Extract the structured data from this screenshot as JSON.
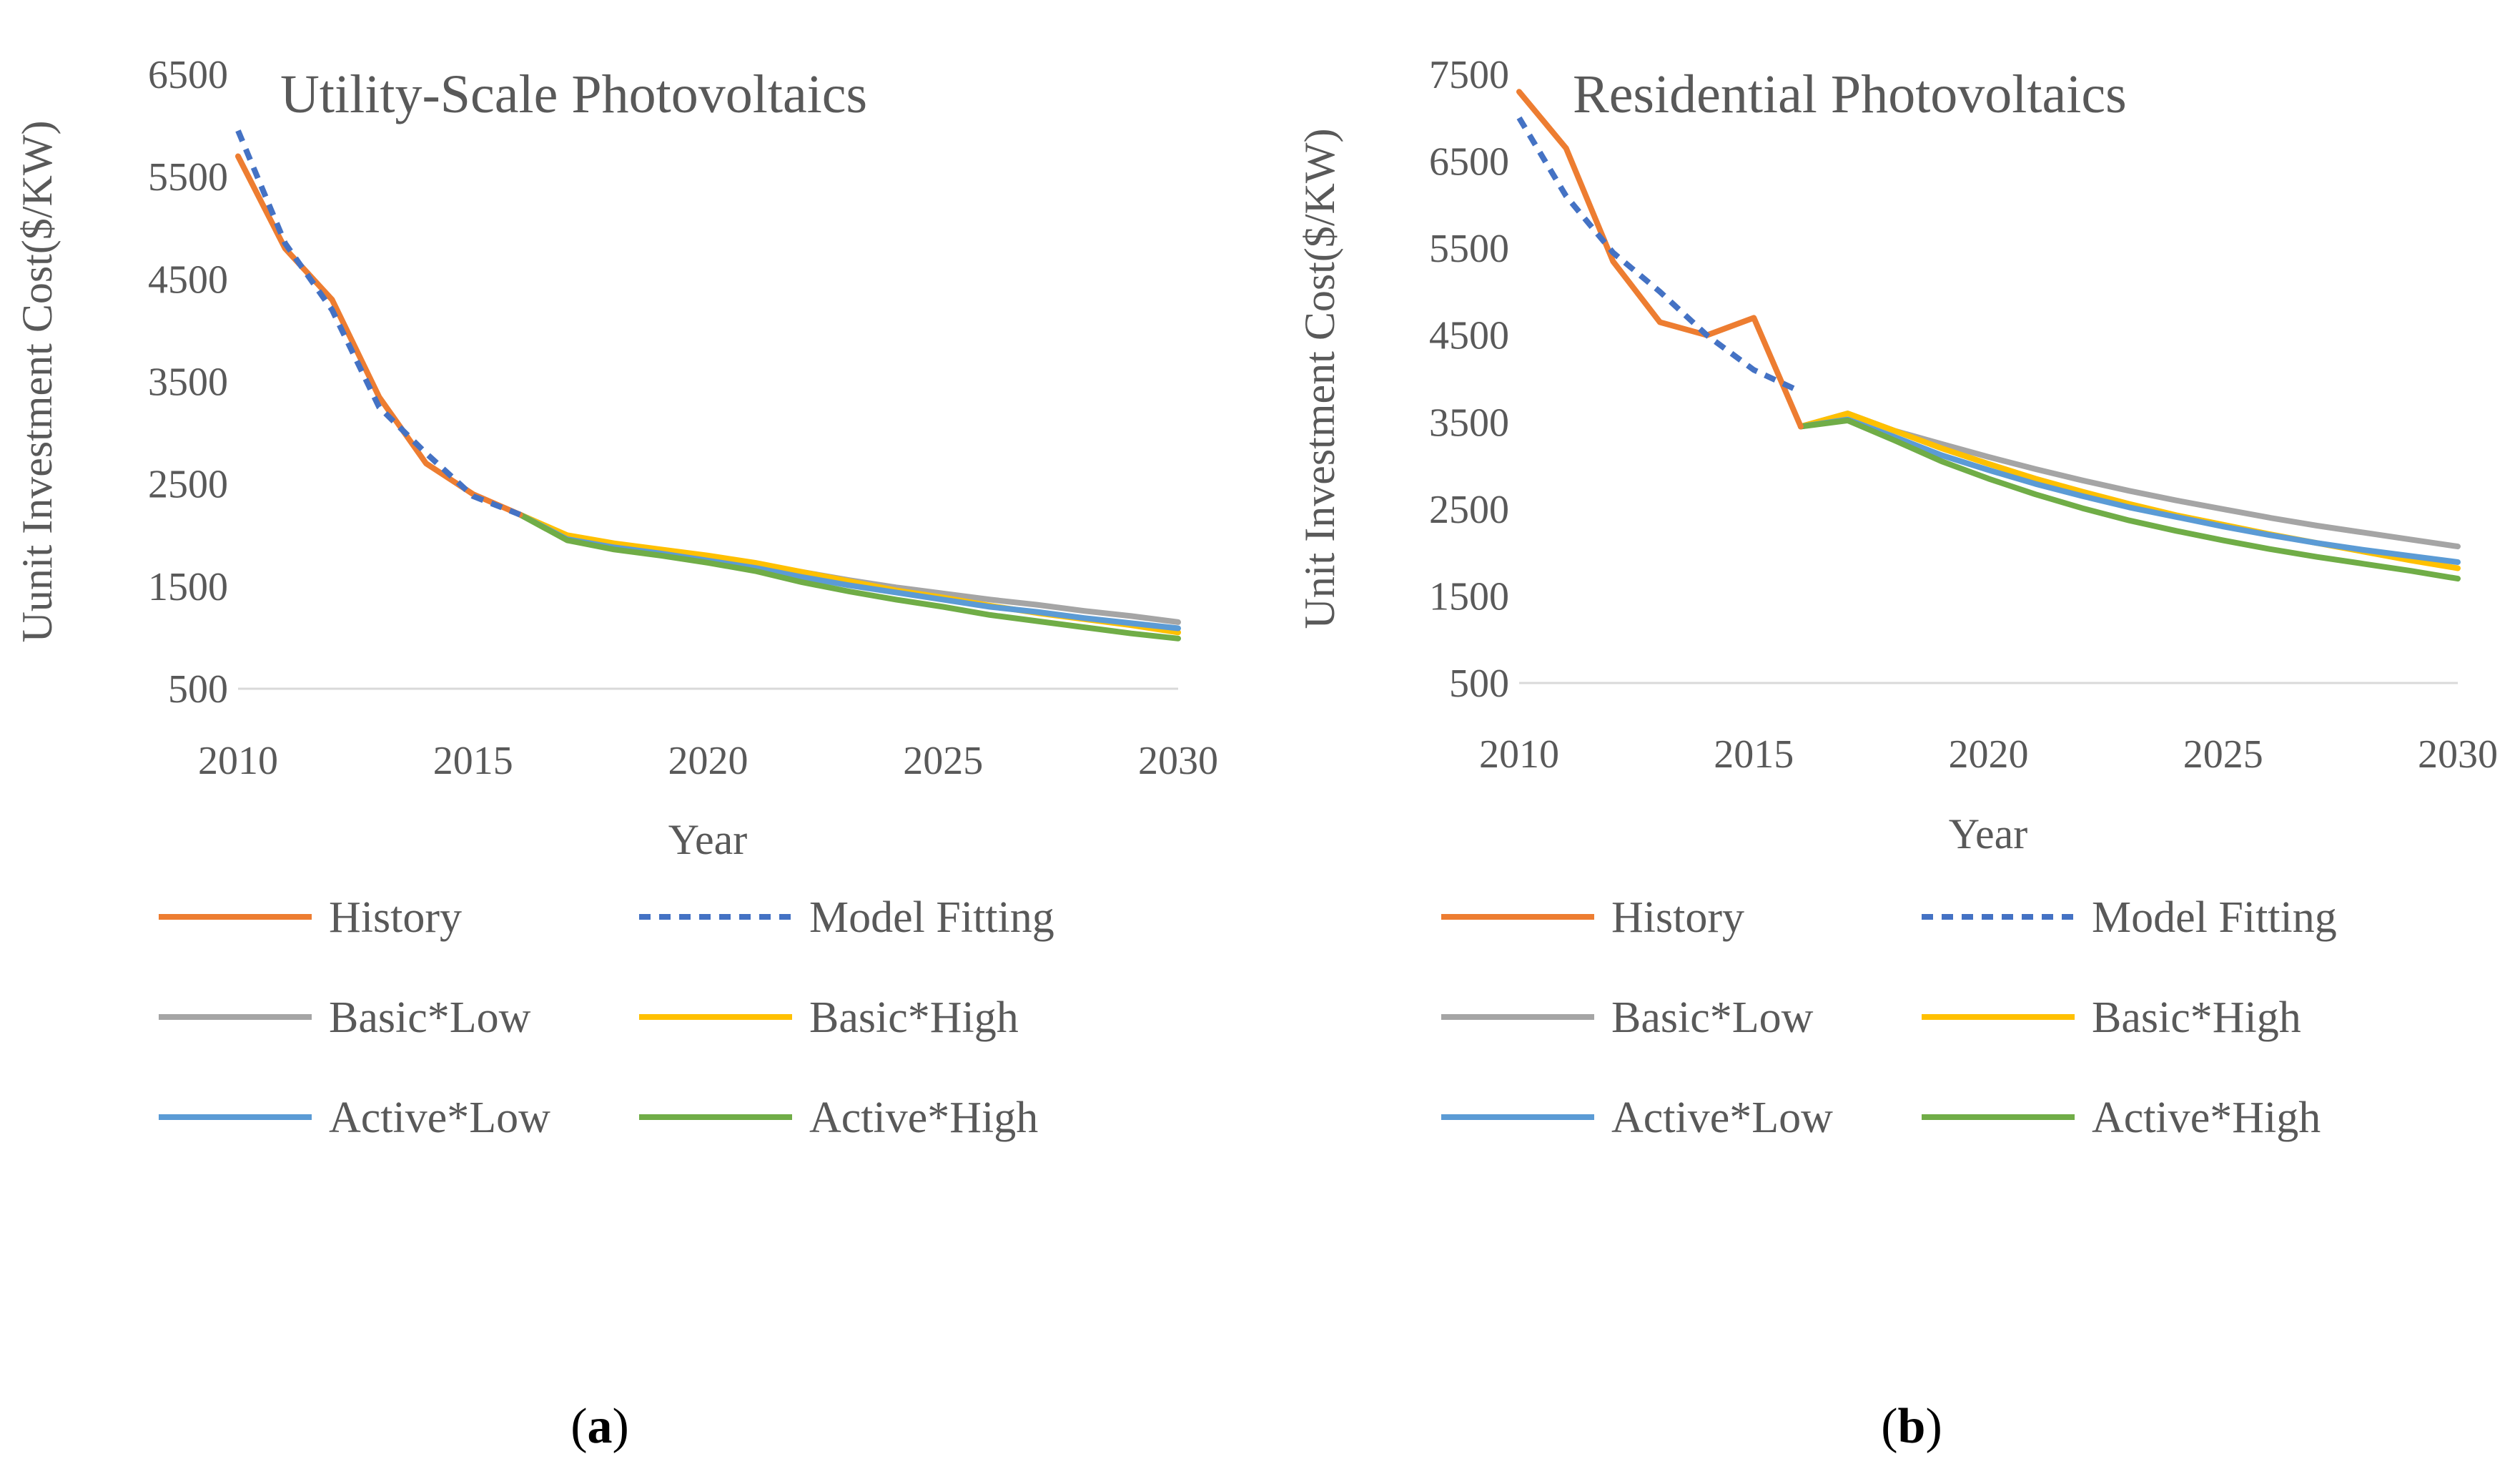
{
  "chart_data": [
    {
      "type": "line",
      "title": "Utility-Scale Photovoltaics",
      "xlabel": "Year",
      "ylabel": "Uunit Investment Cost($/KW)",
      "xlim": [
        2010,
        2030
      ],
      "ylim": [
        500,
        6500
      ],
      "xticks": [
        "2010",
        "2015",
        "2020",
        "2025",
        "2030"
      ],
      "yticks": [
        "500",
        "1500",
        "2500",
        "3500",
        "4500",
        "5500",
        "6500"
      ],
      "caption_letter": "a",
      "series": [
        {
          "name": "History",
          "color": "#ED7D31",
          "dash": false,
          "x": [
            2010,
            2011,
            2012,
            2013,
            2014,
            2015,
            2016
          ],
          "y": [
            5700,
            4800,
            4300,
            3350,
            2700,
            2400,
            2200
          ]
        },
        {
          "name": "Model Fitting",
          "color": "#4472C4",
          "dash": true,
          "x": [
            2010,
            2011,
            2012,
            2013,
            2014,
            2015,
            2016
          ],
          "y": [
            5950,
            4850,
            4200,
            3250,
            2800,
            2380,
            2200
          ]
        },
        {
          "name": "Basic*Low",
          "color": "#A5A5A5",
          "dash": false,
          "x": [
            2016,
            2017,
            2018,
            2019,
            2020,
            2021,
            2022,
            2023,
            2024,
            2025,
            2026,
            2027,
            2028,
            2029,
            2030
          ],
          "y": [
            2200,
            1990,
            1900,
            1840,
            1780,
            1720,
            1640,
            1560,
            1490,
            1430,
            1370,
            1320,
            1260,
            1210,
            1150
          ]
        },
        {
          "name": "Basic*High",
          "color": "#FFC000",
          "dash": false,
          "x": [
            2016,
            2017,
            2018,
            2019,
            2020,
            2021,
            2022,
            2023,
            2024,
            2025,
            2026,
            2027,
            2028,
            2029,
            2030
          ],
          "y": [
            2200,
            2000,
            1920,
            1860,
            1800,
            1730,
            1640,
            1550,
            1460,
            1390,
            1310,
            1240,
            1180,
            1120,
            1050
          ]
        },
        {
          "name": "Active*Low",
          "color": "#5B9BD5",
          "dash": false,
          "x": [
            2016,
            2017,
            2018,
            2019,
            2020,
            2021,
            2022,
            2023,
            2024,
            2025,
            2026,
            2027,
            2028,
            2029,
            2030
          ],
          "y": [
            2200,
            1960,
            1880,
            1820,
            1750,
            1680,
            1590,
            1510,
            1440,
            1370,
            1300,
            1250,
            1190,
            1140,
            1090
          ]
        },
        {
          "name": "Active*High",
          "color": "#70AD47",
          "dash": false,
          "x": [
            2016,
            2017,
            2018,
            2019,
            2020,
            2021,
            2022,
            2023,
            2024,
            2025,
            2026,
            2027,
            2028,
            2029,
            2030
          ],
          "y": [
            2200,
            1950,
            1860,
            1800,
            1730,
            1650,
            1540,
            1450,
            1370,
            1300,
            1220,
            1160,
            1100,
            1040,
            990
          ]
        }
      ]
    },
    {
      "type": "line",
      "title": "Residential Photovoltaics",
      "xlabel": "Year",
      "ylabel": "Unit Investment Cost($/KW)",
      "xlim": [
        2010,
        2030
      ],
      "ylim": [
        500,
        7500
      ],
      "xticks": [
        "2010",
        "2015",
        "2020",
        "2025",
        "2030"
      ],
      "yticks": [
        "500",
        "1500",
        "2500",
        "3500",
        "4500",
        "5500",
        "6500",
        "7500"
      ],
      "caption_letter": "b",
      "series": [
        {
          "name": "History",
          "color": "#ED7D31",
          "dash": false,
          "x": [
            2010,
            2011,
            2012,
            2013,
            2014,
            2015,
            2016
          ],
          "y": [
            7300,
            6650,
            5350,
            4650,
            4500,
            4700,
            3450
          ]
        },
        {
          "name": "Model Fitting",
          "color": "#4472C4",
          "dash": true,
          "x": [
            2010,
            2011,
            2012,
            2013,
            2014,
            2015,
            2016
          ],
          "y": [
            7000,
            6100,
            5450,
            5000,
            4500,
            4100,
            3850
          ]
        },
        {
          "name": "Basic*Low",
          "color": "#A5A5A5",
          "dash": false,
          "x": [
            2016,
            2017,
            2018,
            2019,
            2020,
            2021,
            2022,
            2023,
            2024,
            2025,
            2026,
            2027,
            2028,
            2029,
            2030
          ],
          "y": [
            3450,
            3600,
            3400,
            3250,
            3100,
            2960,
            2830,
            2710,
            2600,
            2500,
            2400,
            2310,
            2230,
            2150,
            2070
          ]
        },
        {
          "name": "Basic*High",
          "color": "#FFC000",
          "dash": false,
          "x": [
            2016,
            2017,
            2018,
            2019,
            2020,
            2021,
            2022,
            2023,
            2024,
            2025,
            2026,
            2027,
            2028,
            2029,
            2030
          ],
          "y": [
            3450,
            3600,
            3400,
            3200,
            3020,
            2850,
            2700,
            2560,
            2430,
            2320,
            2210,
            2110,
            2010,
            1910,
            1820
          ]
        },
        {
          "name": "Active*Low",
          "color": "#5B9BD5",
          "dash": false,
          "x": [
            2016,
            2017,
            2018,
            2019,
            2020,
            2021,
            2022,
            2023,
            2024,
            2025,
            2026,
            2027,
            2028,
            2029,
            2030
          ],
          "y": [
            3450,
            3530,
            3330,
            3120,
            2950,
            2790,
            2650,
            2520,
            2410,
            2300,
            2200,
            2110,
            2030,
            1960,
            1890
          ]
        },
        {
          "name": "Active*High",
          "color": "#70AD47",
          "dash": false,
          "x": [
            2016,
            2017,
            2018,
            2019,
            2020,
            2021,
            2022,
            2023,
            2024,
            2025,
            2026,
            2027,
            2028,
            2029,
            2030
          ],
          "y": [
            3450,
            3520,
            3290,
            3050,
            2850,
            2670,
            2510,
            2370,
            2250,
            2140,
            2040,
            1950,
            1870,
            1790,
            1700
          ]
        }
      ]
    }
  ]
}
